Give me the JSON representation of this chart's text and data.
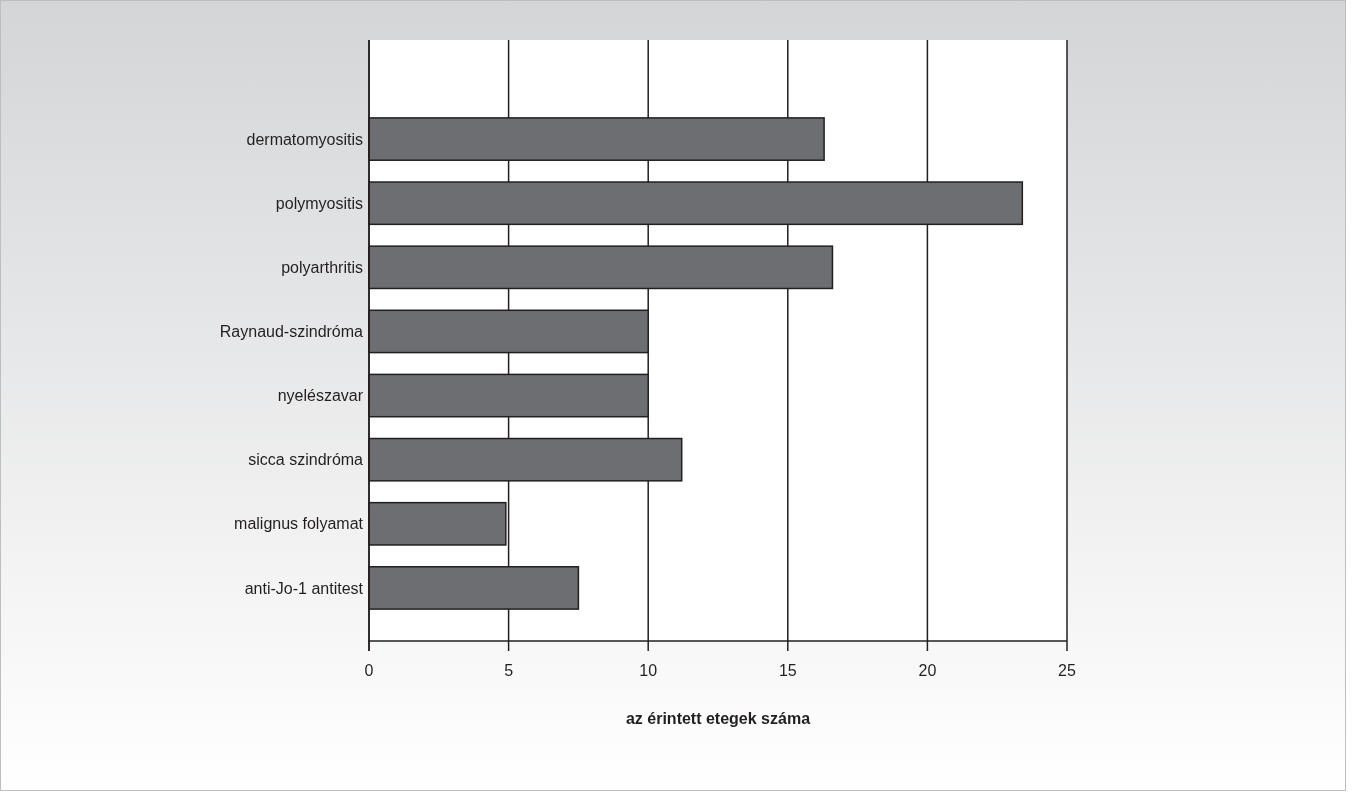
{
  "chart_data": {
    "type": "bar",
    "orientation": "horizontal",
    "xlabel": "az érintett etegek száma",
    "categories": [
      "dermatomyositis",
      "polymyositis",
      "polyarthritis",
      "Raynaud-szindróma",
      "nyelészavar",
      "sicca szindróma",
      "malignus folyamat",
      "anti-Jo-1 antitest"
    ],
    "values": [
      16.3,
      23.4,
      16.6,
      10,
      10,
      11.2,
      4.9,
      7.5
    ],
    "color": "#6d6e71",
    "xlim": [
      0,
      25
    ],
    "xticks": [
      0,
      5,
      10,
      15,
      20,
      25
    ],
    "grid": "x"
  }
}
